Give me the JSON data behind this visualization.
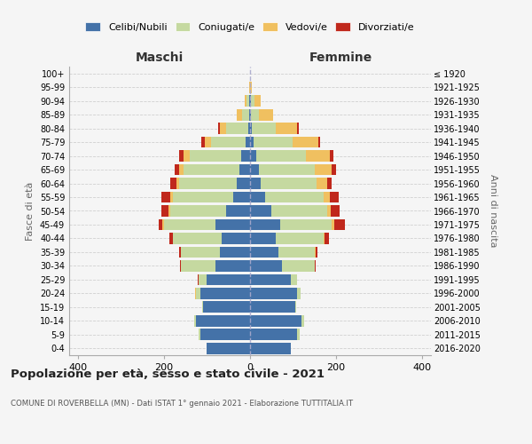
{
  "age_groups": [
    "0-4",
    "5-9",
    "10-14",
    "15-19",
    "20-24",
    "25-29",
    "30-34",
    "35-39",
    "40-44",
    "45-49",
    "50-54",
    "55-59",
    "60-64",
    "65-69",
    "70-74",
    "75-79",
    "80-84",
    "85-89",
    "90-94",
    "95-99",
    "100+"
  ],
  "birth_years": [
    "2016-2020",
    "2011-2015",
    "2006-2010",
    "2001-2005",
    "1996-2000",
    "1991-1995",
    "1986-1990",
    "1981-1985",
    "1976-1980",
    "1971-1975",
    "1966-1970",
    "1961-1965",
    "1956-1960",
    "1951-1955",
    "1946-1950",
    "1941-1945",
    "1936-1940",
    "1931-1935",
    "1926-1930",
    "1921-1925",
    "≤ 1920"
  ],
  "colors": {
    "celibi": "#4472a8",
    "coniugati": "#c5d9a0",
    "vedovi": "#f0c060",
    "divorziati": "#c0281c"
  },
  "maschi": {
    "celibi": [
      100,
      115,
      125,
      110,
      115,
      100,
      80,
      70,
      65,
      80,
      55,
      40,
      30,
      25,
      20,
      10,
      5,
      3,
      2,
      0,
      0
    ],
    "coniugati": [
      0,
      5,
      5,
      2,
      10,
      20,
      80,
      90,
      115,
      120,
      130,
      140,
      135,
      130,
      120,
      80,
      50,
      15,
      6,
      1,
      0
    ],
    "vedovi": [
      0,
      0,
      0,
      0,
      2,
      0,
      0,
      0,
      0,
      3,
      5,
      5,
      5,
      10,
      15,
      15,
      15,
      12,
      5,
      1,
      0
    ],
    "divorziati": [
      0,
      0,
      0,
      0,
      0,
      2,
      2,
      5,
      8,
      10,
      15,
      20,
      15,
      10,
      10,
      8,
      5,
      0,
      0,
      0,
      0
    ]
  },
  "femmine": {
    "celibi": [
      95,
      110,
      120,
      105,
      110,
      95,
      75,
      65,
      60,
      70,
      50,
      35,
      25,
      20,
      15,
      8,
      5,
      3,
      2,
      0,
      0
    ],
    "coniugati": [
      0,
      5,
      5,
      2,
      8,
      15,
      75,
      85,
      110,
      120,
      130,
      135,
      130,
      130,
      115,
      90,
      55,
      18,
      8,
      1,
      0
    ],
    "vedovi": [
      0,
      0,
      0,
      0,
      0,
      0,
      0,
      2,
      3,
      5,
      8,
      15,
      25,
      40,
      55,
      60,
      50,
      32,
      15,
      3,
      1
    ],
    "divorziati": [
      0,
      0,
      0,
      0,
      0,
      0,
      2,
      4,
      10,
      25,
      20,
      20,
      10,
      10,
      8,
      5,
      4,
      0,
      0,
      0,
      0
    ]
  },
  "title": "Popolazione per età, sesso e stato civile - 2021",
  "subtitle": "COMUNE DI ROVERBELLA (MN) - Dati ISTAT 1° gennaio 2021 - Elaborazione TUTTITALIA.IT",
  "xlabel_left": "Maschi",
  "xlabel_right": "Femmine",
  "ylabel_left": "Fasce di età",
  "ylabel_right": "Anni di nascita",
  "xlim": 420,
  "legend_labels": [
    "Celibi/Nubili",
    "Coniugati/e",
    "Vedovi/e",
    "Divorziati/e"
  ],
  "background_color": "#f5f5f5",
  "grid_color": "#cccccc"
}
